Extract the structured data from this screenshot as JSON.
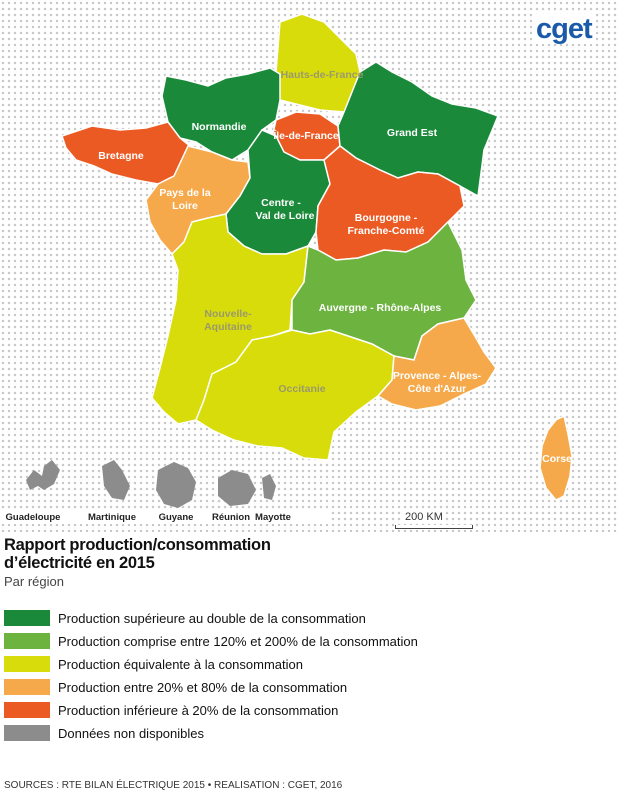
{
  "logo": "cget",
  "title_line1": "Rapport production/consommation",
  "title_line2": "d’électricité en 2015",
  "subtitle": "Par région",
  "scale_label": "200 KM",
  "colors": {
    "dark_green": "#1a8a3a",
    "light_green": "#6cb33f",
    "yellow": "#d9dc0b",
    "light_orange": "#f5a94a",
    "red_orange": "#ec5a24",
    "grey": "#8c8c8c"
  },
  "regions": [
    {
      "name": "Hauts-de-France",
      "category": "yellow"
    },
    {
      "name": "Normandie",
      "category": "dark_green"
    },
    {
      "name": "Île-de-France",
      "category": "red_orange"
    },
    {
      "name": "Grand Est",
      "category": "dark_green"
    },
    {
      "name": "Bretagne",
      "category": "red_orange"
    },
    {
      "name": "Pays de la Loire",
      "category": "light_orange"
    },
    {
      "name": "Centre - Val de Loire",
      "category": "dark_green"
    },
    {
      "name": "Bourgogne - Franche-Comté",
      "category": "red_orange"
    },
    {
      "name": "Nouvelle-Aquitaine",
      "category": "yellow"
    },
    {
      "name": "Auvergne - Rhône-Alpes",
      "category": "light_green"
    },
    {
      "name": "Occitanie",
      "category": "yellow"
    },
    {
      "name": "Provence - Alpes-Côte d'Azur",
      "category": "light_orange"
    },
    {
      "name": "Corse",
      "category": "light_orange"
    }
  ],
  "overseas": [
    "Guadeloupe",
    "Martinique",
    "Guyane",
    "Réunion",
    "Mayotte"
  ],
  "legend": [
    {
      "label": "Production supérieure au double de la consommation",
      "color": "#1a8a3a"
    },
    {
      "label": "Production comprise entre 120% et 200% de la consommation",
      "color": "#6cb33f"
    },
    {
      "label": "Production équivalente à la consommation",
      "color": "#d9dc0b"
    },
    {
      "label": "Production entre 20% et 80% de la consommation",
      "color": "#f5a94a"
    },
    {
      "label": "Production inférieure à 20% de la consommation",
      "color": "#ec5a24"
    },
    {
      "label": "Données non disponibles",
      "color": "#8c8c8c"
    }
  ],
  "sources": "SOURCES : RTE BILAN ÉLECTRIQUE 2015 • REALISATION : CGET, 2016"
}
